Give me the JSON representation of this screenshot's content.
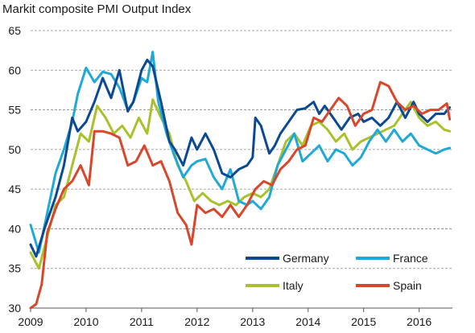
{
  "chart_data": {
    "type": "line",
    "title": "Markit composite PMI Output Index",
    "xlabel": "",
    "ylabel": "",
    "xlim": [
      2009.0,
      2016.6
    ],
    "ylim": [
      30,
      65
    ],
    "x_ticks": [
      2009,
      2010,
      2011,
      2012,
      2013,
      2014,
      2015,
      2016
    ],
    "y_ticks": [
      30,
      35,
      40,
      45,
      50,
      55,
      60,
      65
    ],
    "grid": "horizontal dashed",
    "legend": "bottom-right",
    "series": [
      {
        "name": "Germany",
        "color": "#0b4a92",
        "x": [
          2009.0,
          2009.1,
          2009.25,
          2009.45,
          2009.6,
          2009.75,
          2009.85,
          2010.0,
          2010.15,
          2010.3,
          2010.45,
          2010.6,
          2010.75,
          2010.85,
          2011.0,
          2011.1,
          2011.2,
          2011.35,
          2011.5,
          2011.6,
          2011.75,
          2011.9,
          2012.0,
          2012.15,
          2012.3,
          2012.45,
          2012.6,
          2012.75,
          2012.9,
          2013.0,
          2013.05,
          2013.15,
          2013.3,
          2013.4,
          2013.5,
          2013.65,
          2013.8,
          2013.95,
          2014.1,
          2014.2,
          2014.3,
          2014.45,
          2014.6,
          2014.75,
          2014.9,
          2015.0,
          2015.15,
          2015.3,
          2015.45,
          2015.6,
          2015.75,
          2015.9,
          2016.0,
          2016.15,
          2016.3,
          2016.45,
          2016.55
        ],
        "values": [
          38,
          36.5,
          40,
          44,
          48,
          54,
          52.3,
          53.5,
          56,
          59,
          56.5,
          60,
          54.8,
          56,
          60,
          61.3,
          60.5,
          56,
          51,
          50,
          48,
          51.5,
          50,
          52,
          50,
          47,
          46.5,
          47.5,
          48,
          49,
          54,
          53,
          49.5,
          50.5,
          52,
          53.5,
          55,
          55.2,
          56,
          54.5,
          55.5,
          54,
          52.5,
          54,
          54.5,
          53.5,
          54,
          53,
          54,
          56,
          54,
          56,
          54.5,
          53.5,
          54.5,
          54.5,
          55.3
        ]
      },
      {
        "name": "France",
        "color": "#1fa9d6",
        "x": [
          2009.0,
          2009.15,
          2009.3,
          2009.45,
          2009.6,
          2009.75,
          2009.85,
          2010.0,
          2010.15,
          2010.3,
          2010.45,
          2010.6,
          2010.75,
          2010.85,
          2011.0,
          2011.1,
          2011.2,
          2011.3,
          2011.45,
          2011.6,
          2011.75,
          2011.9,
          2012.0,
          2012.15,
          2012.3,
          2012.45,
          2012.6,
          2012.75,
          2012.9,
          2013.0,
          2013.15,
          2013.3,
          2013.45,
          2013.6,
          2013.75,
          2013.9,
          2014.05,
          2014.2,
          2014.35,
          2014.5,
          2014.65,
          2014.8,
          2014.95,
          2015.1,
          2015.25,
          2015.4,
          2015.55,
          2015.7,
          2015.85,
          2016.0,
          2016.15,
          2016.3,
          2016.45,
          2016.55
        ],
        "values": [
          40.5,
          37,
          42,
          47,
          50,
          53.5,
          57,
          60.3,
          58.5,
          59.8,
          59.5,
          57.8,
          55,
          56,
          59,
          58.5,
          62.3,
          56,
          52,
          49,
          46.5,
          48,
          48.5,
          48.8,
          46.5,
          45,
          47.5,
          43.5,
          43,
          43.5,
          42.5,
          44,
          48,
          50,
          52,
          48.5,
          49.5,
          50.5,
          48.5,
          50,
          49.5,
          48,
          49,
          51,
          52.5,
          51,
          52.5,
          51,
          52,
          50.5,
          50,
          49.5,
          50,
          50.2
        ]
      },
      {
        "name": "Italy",
        "color": "#a9c12a",
        "x": [
          2009.0,
          2009.15,
          2009.3,
          2009.45,
          2009.6,
          2009.75,
          2009.9,
          2010.05,
          2010.2,
          2010.35,
          2010.5,
          2010.65,
          2010.8,
          2010.95,
          2011.1,
          2011.2,
          2011.35,
          2011.5,
          2011.65,
          2011.8,
          2011.95,
          2012.1,
          2012.25,
          2012.4,
          2012.55,
          2012.7,
          2012.85,
          2013.0,
          2013.15,
          2013.3,
          2013.45,
          2013.6,
          2013.75,
          2013.9,
          2014.05,
          2014.2,
          2014.35,
          2014.5,
          2014.65,
          2014.8,
          2014.95,
          2015.1,
          2015.25,
          2015.4,
          2015.55,
          2015.7,
          2015.85,
          2016.0,
          2016.15,
          2016.3,
          2016.45,
          2016.55
        ],
        "values": [
          37,
          35,
          39,
          43,
          44,
          48,
          52,
          51,
          55.5,
          54,
          52,
          53,
          51.5,
          54,
          52,
          56.3,
          54,
          52,
          48,
          46,
          43.5,
          44.5,
          43.5,
          43,
          43.5,
          43,
          44,
          44.5,
          44,
          45,
          48,
          51,
          52,
          50.5,
          53,
          53.5,
          52.5,
          51,
          52,
          50,
          51,
          51.5,
          52,
          52.5,
          53,
          54.5,
          56,
          54,
          53,
          53.5,
          52.5,
          52.3
        ]
      },
      {
        "name": "Spain",
        "color": "#d8472b",
        "x": [
          2009.0,
          2009.1,
          2009.2,
          2009.3,
          2009.45,
          2009.6,
          2009.75,
          2009.9,
          2010.05,
          2010.15,
          2010.3,
          2010.45,
          2010.6,
          2010.75,
          2010.9,
          2011.05,
          2011.2,
          2011.35,
          2011.5,
          2011.65,
          2011.8,
          2011.9,
          2012.0,
          2012.15,
          2012.3,
          2012.45,
          2012.6,
          2012.75,
          2012.9,
          2013.05,
          2013.2,
          2013.35,
          2013.5,
          2013.65,
          2013.8,
          2013.95,
          2014.1,
          2014.25,
          2014.4,
          2014.55,
          2014.7,
          2014.85,
          2015.0,
          2015.15,
          2015.3,
          2015.45,
          2015.6,
          2015.75,
          2015.9,
          2016.05,
          2016.2,
          2016.35,
          2016.5,
          2016.55
        ],
        "values": [
          30,
          30.5,
          33,
          39.5,
          42.5,
          45,
          46,
          48,
          45.5,
          52.3,
          52.3,
          52,
          51.5,
          48,
          48.5,
          50.5,
          48,
          48.5,
          46,
          42,
          40.5,
          38,
          43,
          42,
          42.5,
          41.5,
          43,
          41.5,
          43,
          45,
          46,
          45.5,
          47.5,
          48.5,
          50,
          50.5,
          54,
          53.5,
          55,
          56.5,
          55.5,
          53,
          54.5,
          55,
          58.5,
          58,
          56,
          55,
          55.5,
          54.5,
          55,
          55,
          55.8,
          53.8
        ]
      }
    ]
  }
}
